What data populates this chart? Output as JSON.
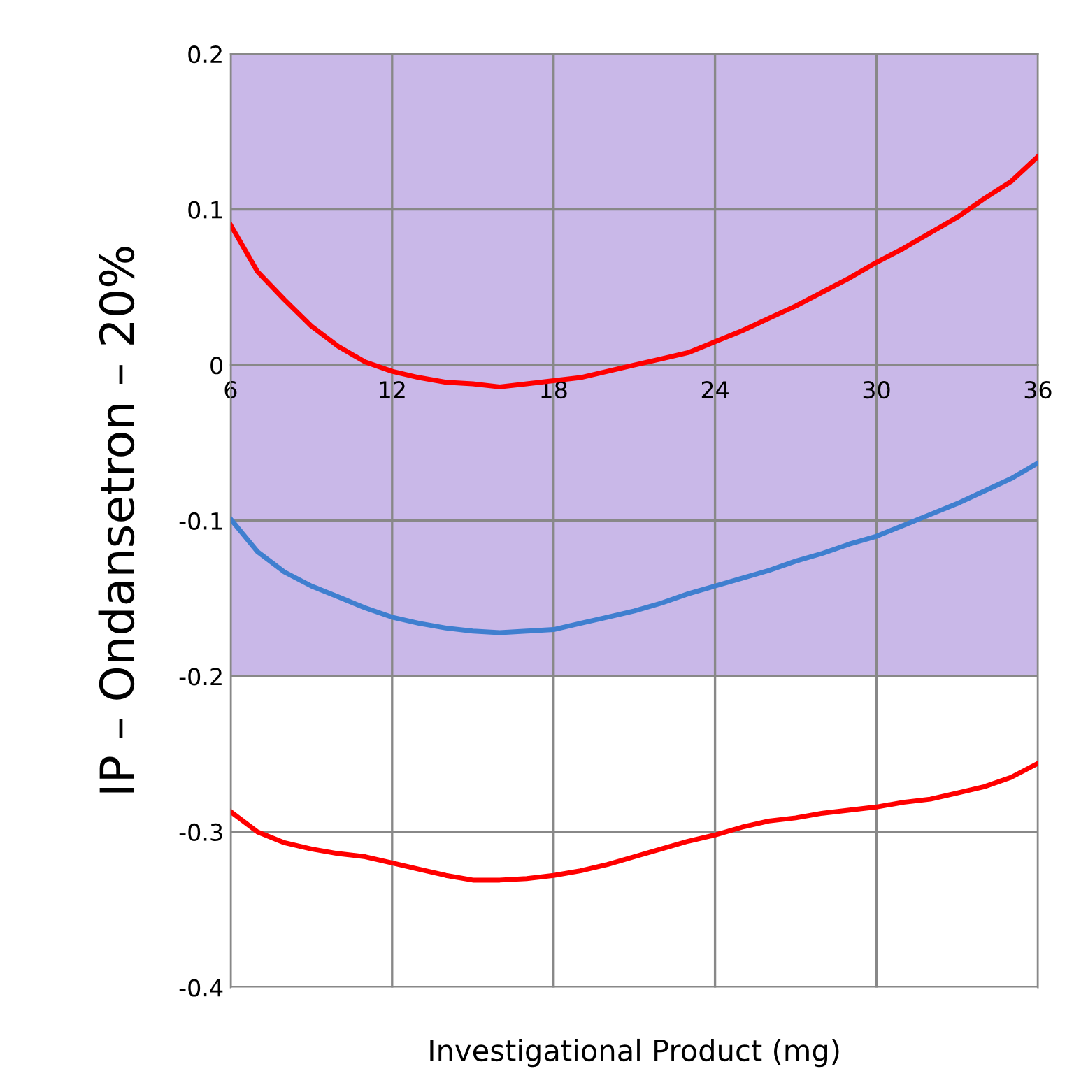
{
  "chart_data": {
    "type": "line",
    "xlabel": "Investigational Product (mg)",
    "ylabel": "IP – Ondansetron – 20%",
    "x": [
      6,
      7,
      8,
      9,
      10,
      11,
      12,
      13,
      14,
      15,
      16,
      17,
      18,
      19,
      20,
      21,
      22,
      23,
      24,
      25,
      26,
      27,
      28,
      29,
      30,
      31,
      32,
      33,
      34,
      35,
      36
    ],
    "series": [
      {
        "color": "#ff0000",
        "values": [
          0.09,
          0.06,
          0.042,
          0.025,
          0.012,
          0.002,
          -0.004,
          -0.008,
          -0.011,
          -0.012,
          -0.014,
          -0.012,
          -0.01,
          -0.008,
          -0.004,
          0,
          0.004,
          0.008,
          0.015,
          0.022,
          0.03,
          0.038,
          0.047,
          0.056,
          0.066,
          0.075,
          0.085,
          0.095,
          0.107,
          0.118,
          0.134
        ]
      },
      {
        "color": "#3f7fcf",
        "values": [
          -0.099,
          -0.12,
          -0.133,
          -0.142,
          -0.149,
          -0.156,
          -0.162,
          -0.166,
          -0.169,
          -0.171,
          -0.172,
          -0.171,
          -0.17,
          -0.166,
          -0.162,
          -0.158,
          -0.153,
          -0.147,
          -0.142,
          -0.137,
          -0.132,
          -0.126,
          -0.121,
          -0.115,
          -0.11,
          -0.103,
          -0.096,
          -0.089,
          -0.081,
          -0.073,
          -0.063
        ]
      },
      {
        "color": "#ff0000",
        "values": [
          -0.287,
          -0.3,
          -0.307,
          -0.311,
          -0.314,
          -0.316,
          -0.32,
          -0.324,
          -0.328,
          -0.331,
          -0.331,
          -0.33,
          -0.328,
          -0.325,
          -0.321,
          -0.316,
          -0.311,
          -0.306,
          -0.302,
          -0.297,
          -0.293,
          -0.291,
          -0.288,
          -0.286,
          -0.284,
          -0.281,
          -0.279,
          -0.275,
          -0.271,
          -0.265,
          -0.256
        ]
      }
    ],
    "xlim": [
      6,
      36
    ],
    "xticks": [
      6,
      12,
      18,
      24,
      30,
      36
    ],
    "ylim": [
      -0.4,
      0.2
    ],
    "yticks": [
      -0.4,
      -0.3,
      -0.2,
      -0.1,
      0,
      0.1,
      0.2
    ],
    "bands": [
      {
        "axis": "y",
        "from": -0.2,
        "to": 0.2,
        "color": "#c9b8e8"
      }
    ],
    "grid": true,
    "marker": "none",
    "line_style": "solid"
  }
}
